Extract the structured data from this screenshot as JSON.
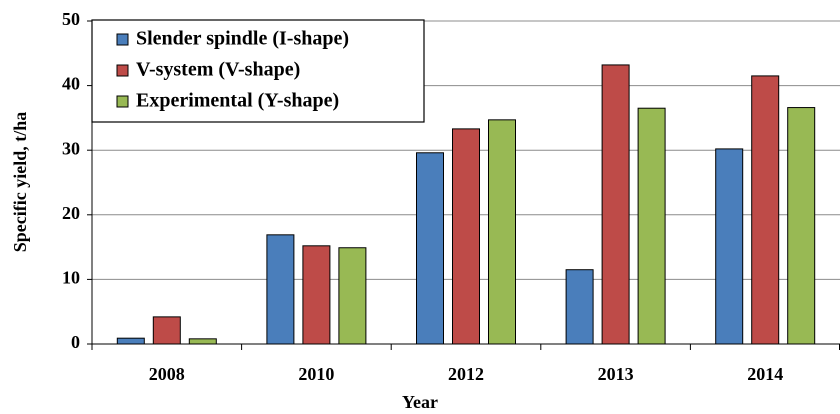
{
  "chart_data": {
    "type": "bar",
    "xlabel": "Year",
    "ylabel": "Specific yield, t/ha",
    "categories": [
      "2008",
      "2010",
      "2012",
      "2013",
      "2014"
    ],
    "series": [
      {
        "name": "Slender spindle (I-shape)",
        "color": "#4a7ebb",
        "values": [
          0.9,
          16.9,
          29.6,
          11.5,
          30.2
        ]
      },
      {
        "name": "V-system (V-shape)",
        "color": "#be4b48",
        "values": [
          4.2,
          15.2,
          33.3,
          43.2,
          41.5
        ]
      },
      {
        "name": "Experimental (Y-shape)",
        "color": "#98b954",
        "values": [
          0.8,
          14.9,
          34.7,
          36.5,
          36.6
        ]
      }
    ],
    "ylim": [
      0,
      50
    ],
    "yticks": [
      0,
      10,
      20,
      30,
      40,
      50
    ],
    "grid": true,
    "legend": "upper left"
  }
}
